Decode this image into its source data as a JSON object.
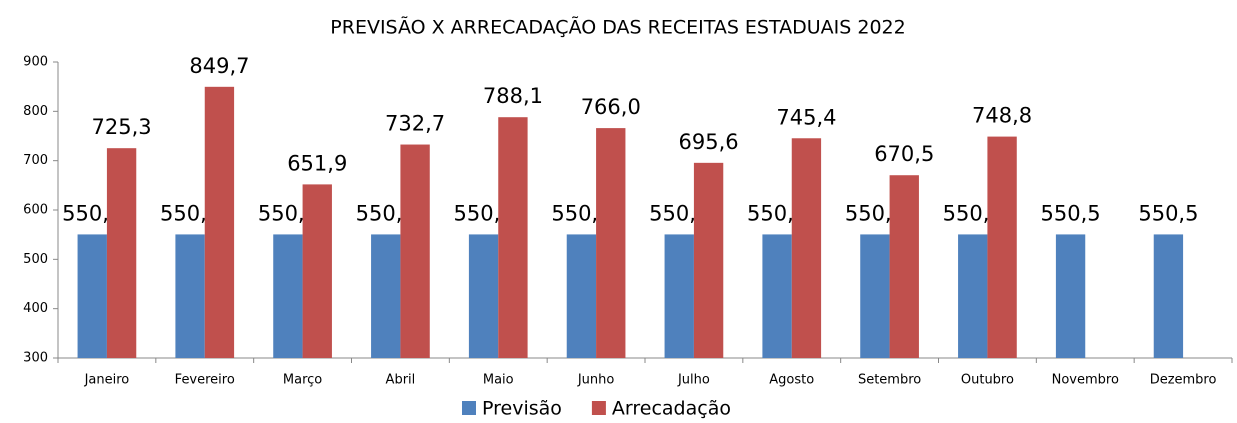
{
  "chart_data": {
    "type": "bar",
    "title": "PREVISÃO X ARRECADAÇÃO DAS RECEITAS ESTADUAIS 2022",
    "categories": [
      "Janeiro",
      "Fevereiro",
      "Março",
      "Abril",
      "Maio",
      "Junho",
      "Julho",
      "Agosto",
      "Setembro",
      "Outubro",
      "Novembro",
      "Dezembro"
    ],
    "series": [
      {
        "name": "Previsão",
        "color": "#4f81bd",
        "values": [
          550.5,
          550.5,
          550.5,
          550.5,
          550.5,
          550.5,
          550.5,
          550.5,
          550.5,
          550.5,
          550.5,
          550.5
        ],
        "value_labels": [
          "550,5",
          "550,5",
          "550,5",
          "550,5",
          "550,5",
          "550,5",
          "550,5",
          "550,5",
          "550,5",
          "550,5",
          "550,5",
          "550,5"
        ]
      },
      {
        "name": "Arrecadação",
        "color": "#c0504d",
        "values": [
          725.3,
          849.7,
          651.9,
          732.7,
          788.1,
          766.0,
          695.6,
          745.4,
          670.5,
          748.8,
          null,
          null
        ],
        "value_labels": [
          "725,3",
          "849,7",
          "651,9",
          "732,7",
          "788,1",
          "766,0",
          "695,6",
          "745,4",
          "670,5",
          "748,8",
          null,
          null
        ]
      }
    ],
    "ylim": [
      300,
      900
    ],
    "yticks": [
      300,
      400,
      500,
      600,
      700,
      800,
      900
    ],
    "grid": false,
    "legend": "bottom"
  }
}
